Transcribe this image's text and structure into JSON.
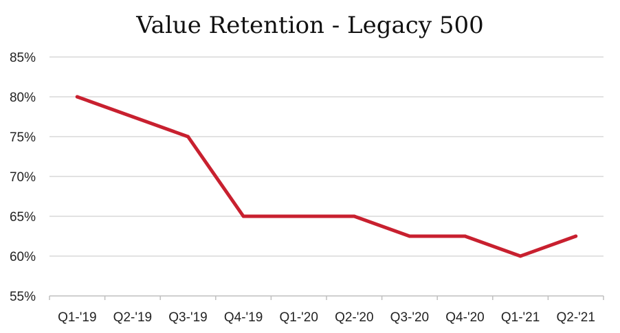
{
  "chart_data": {
    "type": "line",
    "title": "Value Retention - Legacy 500",
    "xlabel": "",
    "ylabel": "",
    "categories": [
      "Q1-'19",
      "Q2-'19",
      "Q3-'19",
      "Q4-'19",
      "Q1-'20",
      "Q2-'20",
      "Q3-'20",
      "Q4-'20",
      "Q1-'21",
      "Q2-'21"
    ],
    "series": [
      {
        "values": [
          80,
          77.5,
          75,
          65,
          65,
          65,
          62.5,
          62.5,
          60,
          62.5
        ],
        "color": "#c8202f"
      }
    ],
    "ylim": [
      55,
      85
    ],
    "yticks": [
      55,
      60,
      65,
      70,
      75,
      80,
      85
    ],
    "ytick_labels": [
      "55%",
      "60%",
      "65%",
      "70%",
      "75%",
      "80%",
      "85%"
    ],
    "grid": true,
    "legend": "none"
  }
}
